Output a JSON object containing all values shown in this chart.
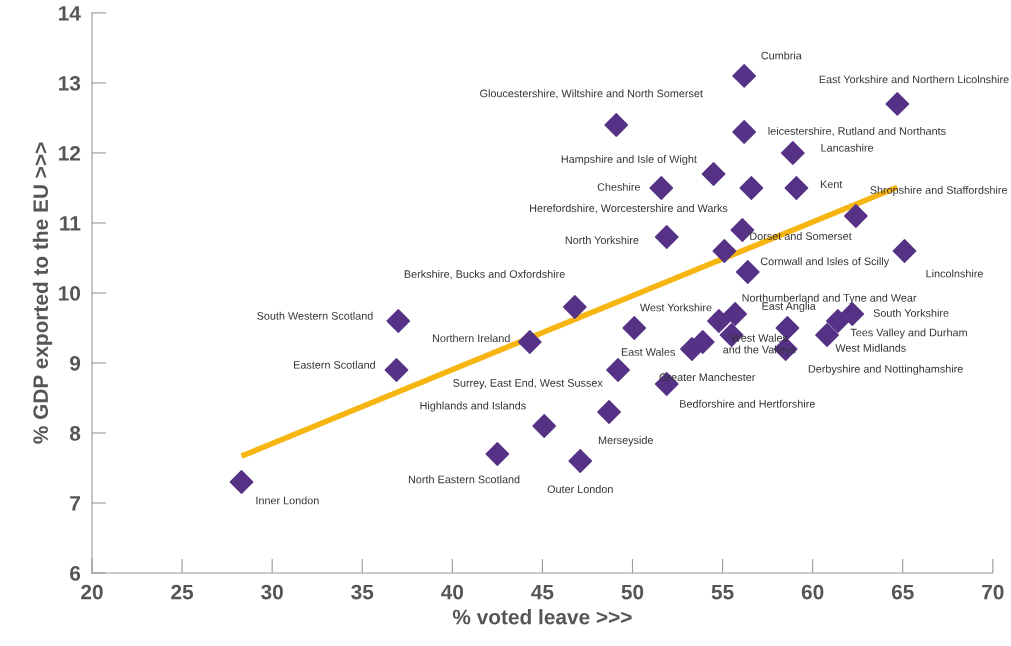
{
  "chart_data": {
    "type": "scatter",
    "xlabel": "% voted leave >>>",
    "ylabel": "% GDP exported to the EU >>>",
    "series": [
      {
        "marker": "diamond",
        "color": "#553285",
        "x": [
          28.3,
          37.0,
          36.9,
          46.8,
          44.3,
          45.1,
          42.5,
          47.1,
          48.7,
          49.2,
          50.1,
          51.9,
          49.1,
          51.6,
          51.9,
          54.5,
          56.2,
          56.2,
          56.6,
          56.1,
          55.1,
          58.9,
          59.1,
          64.7,
          62.4,
          65.1,
          56.4,
          55.7,
          54.8,
          58.6,
          55.5,
          53.3,
          53.9,
          58.5,
          60.8,
          61.4,
          62.2
        ],
        "values": [
          7.3,
          9.6,
          8.9,
          9.8,
          9.3,
          8.1,
          7.7,
          7.6,
          8.3,
          8.9,
          9.5,
          8.7,
          12.4,
          11.5,
          10.8,
          11.7,
          13.1,
          12.3,
          11.5,
          10.9,
          10.6,
          12.0,
          11.5,
          12.7,
          11.1,
          10.6,
          10.3,
          9.7,
          9.6,
          9.5,
          9.4,
          9.2,
          9.3,
          9.2,
          9.4,
          9.6,
          9.7
        ]
      },
      {
        "type": "line",
        "marker": "none",
        "color": "#f7b512",
        "x": [
          28.3,
          64.7
        ],
        "values": [
          7.67,
          11.51
        ]
      }
    ],
    "annotations": [
      {
        "text": "Inner London",
        "x": 28.3,
        "y": 7.3
      },
      {
        "text": "South Western Scotland",
        "x": 37.0,
        "y": 9.6
      },
      {
        "text": "Eastern Scotland",
        "x": 36.9,
        "y": 8.9
      },
      {
        "text": "Berkshire, Bucks and Oxfordshire",
        "x": 46.8,
        "y": 9.8
      },
      {
        "text": "Northern Ireland",
        "x": 44.3,
        "y": 9.3
      },
      {
        "text": "Highlands and Islands",
        "x": 45.1,
        "y": 8.1
      },
      {
        "text": "North Eastern Scotland",
        "x": 42.5,
        "y": 7.7
      },
      {
        "text": "Outer London",
        "x": 47.1,
        "y": 7.6
      },
      {
        "text": "Merseyside",
        "x": 48.7,
        "y": 8.3
      },
      {
        "text": "Surrey, East End, West Sussex",
        "x": 49.2,
        "y": 8.9
      },
      {
        "text": "East Wales",
        "x": 50.1,
        "y": 9.5
      },
      {
        "text": "Bedforshire and Hertforshire",
        "x": 51.9,
        "y": 8.7
      },
      {
        "text": "Gloucestershire, Wiltshire and North Somerset",
        "x": 49.1,
        "y": 12.4
      },
      {
        "text": "Cheshire",
        "x": 51.6,
        "y": 11.5
      },
      {
        "text": "North Yorkshire",
        "x": 51.9,
        "y": 10.8
      },
      {
        "text": "Hampshire and Isle of Wight",
        "x": 54.5,
        "y": 11.7
      },
      {
        "text": "Cumbria",
        "x": 56.2,
        "y": 13.1
      },
      {
        "text": "leicestershire, Rutland and Northants",
        "x": 56.2,
        "y": 12.3
      },
      {
        "text": "Herefordshire, Worcestershire and Warks",
        "x": 56.1,
        "y": 10.9
      },
      {
        "text": "Dorset and Somerset",
        "x": 55.1,
        "y": 10.6
      },
      {
        "text": "Lancashire",
        "x": 58.9,
        "y": 12.0
      },
      {
        "text": "Kent",
        "x": 59.1,
        "y": 11.5
      },
      {
        "text": "East Yorkshire and Northern Licolnshire",
        "x": 64.7,
        "y": 12.7
      },
      {
        "text": "Shropshire and Staffordshire",
        "x": 62.4,
        "y": 11.1
      },
      {
        "text": "Lincolnshire",
        "x": 65.1,
        "y": 10.6
      },
      {
        "text": "Cornwall and Isles of Scilly",
        "x": 56.4,
        "y": 10.3
      },
      {
        "text": "Northumberland and Tyne and Wear",
        "x": 58.6,
        "y": 9.5
      },
      {
        "text": "West Yorkshire",
        "x": 54.8,
        "y": 9.6
      },
      {
        "text": "East Anglia",
        "x": 55.7,
        "y": 9.7
      },
      {
        "text": "West Wales\nand the Valleys",
        "x": 55.5,
        "y": 9.4
      },
      {
        "text": "Greater Manchester",
        "x": 53.3,
        "y": 9.2
      },
      {
        "text": "Derbyshire and Nottinghamshire",
        "x": 58.5,
        "y": 9.2
      },
      {
        "text": "Tees Valley and Durham",
        "x": 61.4,
        "y": 9.6
      },
      {
        "text": "West Midlands",
        "x": 60.8,
        "y": 9.4
      },
      {
        "text": "South Yorkshire",
        "x": 62.2,
        "y": 9.7
      }
    ],
    "grid": false,
    "legend": false,
    "xlim": [
      20,
      70
    ],
    "xticks": [
      20,
      25,
      30,
      35,
      40,
      45,
      50,
      55,
      60,
      65,
      70
    ],
    "ylim": [
      6,
      14
    ],
    "yticks": [
      6,
      7,
      8,
      9,
      10,
      11,
      12,
      13,
      14
    ]
  }
}
